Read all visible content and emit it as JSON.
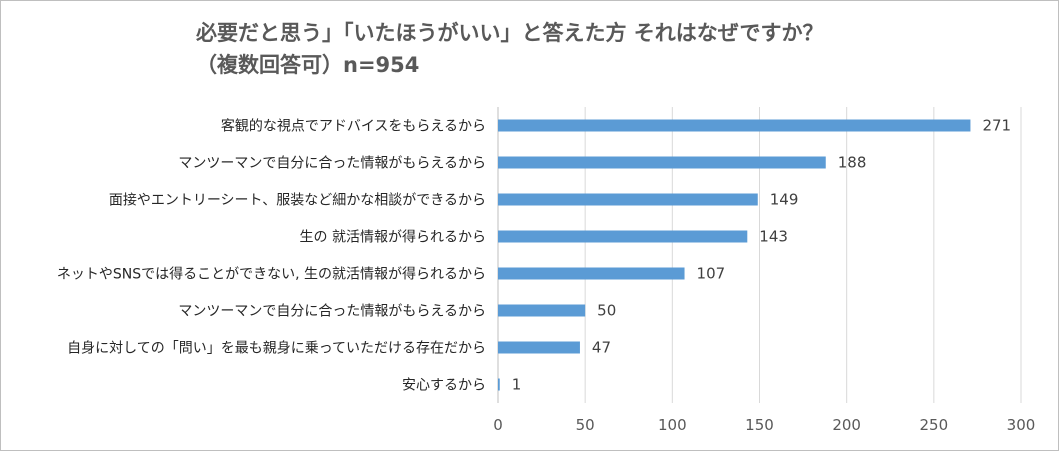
{
  "chart_data": {
    "type": "bar",
    "orientation": "horizontal",
    "title": [
      "必要だと思う」「いたほうがいい」と答えた方 それはなぜですか？",
      "（複数回答可）n=954"
    ],
    "categories": [
      "客観的な視点でアドバイスをもらえるから",
      "マンツーマンで自分に合った情報がもらえるから",
      "面接やエントリーシート、服装など細かな相談ができるから",
      "生の 就活情報が得られるから",
      "ネットやSNSでは得ることができない, 生の就活情報が得られるから",
      "マンツーマンで自分に合った情報がもらえるから",
      "自身に対しての「問い」を最も親身に乗っていただける存在だから",
      "安心するから"
    ],
    "values": [
      271,
      188,
      149,
      143,
      107,
      50,
      47,
      1
    ],
    "xlim": [
      0,
      300
    ],
    "xticks": [
      0,
      50,
      100,
      150,
      200,
      250,
      300
    ],
    "grid": true,
    "legend": "none",
    "bar_color": "#5b9bd5",
    "grid_color": "#d9d9d9"
  }
}
